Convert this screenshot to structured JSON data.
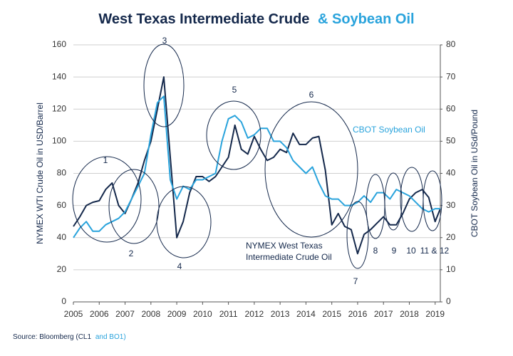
{
  "chart_data": {
    "type": "line",
    "title": [
      "West Texas Intermediate Crude",
      "& Soybean Oil"
    ],
    "title_colors": [
      "#14284b",
      "#29a3dc"
    ],
    "y_label": "NYMEX WTI Crude Oil in USD/Barrel",
    "y2_label": "CBOT Soybean Oil in USd/Pound",
    "source": [
      "Source: Bloomberg (CL1",
      "and BO1)"
    ],
    "annotations": [
      "1",
      "2",
      "3",
      "4",
      "5",
      "6",
      "7",
      "8",
      "9",
      "10",
      "11 & 12"
    ],
    "xlim": [
      2005,
      2019.2
    ],
    "xticks": [
      2005,
      2006,
      2007,
      2008,
      2009,
      2010,
      2011,
      2012,
      2013,
      2014,
      2015,
      2016,
      2017,
      2018,
      2019
    ],
    "ylim": [
      0,
      160
    ],
    "yticks": [
      0,
      20,
      40,
      60,
      80,
      100,
      120,
      140,
      160
    ],
    "y2lim": [
      0,
      80
    ],
    "y2ticks": [
      0,
      10,
      20,
      30,
      40,
      50,
      60,
      70,
      80
    ],
    "grid": true,
    "x": [
      2005.0,
      2005.25,
      2005.5,
      2005.75,
      2006.0,
      2006.25,
      2006.5,
      2006.75,
      2007.0,
      2007.25,
      2007.5,
      2007.75,
      2008.0,
      2008.25,
      2008.5,
      2008.75,
      2009.0,
      2009.25,
      2009.5,
      2009.75,
      2010.0,
      2010.25,
      2010.5,
      2010.75,
      2011.0,
      2011.25,
      2011.5,
      2011.75,
      2012.0,
      2012.25,
      2012.5,
      2012.75,
      2013.0,
      2013.25,
      2013.5,
      2013.75,
      2014.0,
      2014.25,
      2014.5,
      2014.75,
      2015.0,
      2015.25,
      2015.5,
      2015.75,
      2016.0,
      2016.25,
      2016.5,
      2016.75,
      2017.0,
      2017.25,
      2017.5,
      2017.75,
      2018.0,
      2018.25,
      2018.5,
      2018.75,
      2019.0,
      2019.2
    ],
    "series": [
      {
        "name": "NYMEX West Texas Intermediate Crude Oil",
        "color": "#14284b",
        "axis": "y",
        "values": [
          47,
          53,
          60,
          62,
          63,
          70,
          74,
          60,
          55,
          64,
          74,
          88,
          100,
          120,
          140,
          90,
          40,
          50,
          68,
          78,
          78,
          75,
          78,
          84,
          90,
          110,
          95,
          92,
          103,
          95,
          88,
          90,
          95,
          93,
          105,
          98,
          98,
          102,
          103,
          82,
          48,
          55,
          47,
          45,
          30,
          42,
          45,
          49,
          53,
          48,
          48,
          55,
          64,
          68,
          70,
          65,
          50,
          58
        ]
      },
      {
        "name": "CBOT Soybean Oil",
        "color": "#29a3dc",
        "axis": "y2",
        "values": [
          20,
          23,
          25,
          22,
          22,
          24,
          25,
          26,
          28,
          32,
          36,
          40,
          52,
          62,
          64,
          38,
          32,
          36,
          35,
          38,
          38,
          39,
          40,
          50,
          57,
          58,
          56,
          51,
          52,
          54,
          54,
          50,
          50,
          48,
          44,
          42,
          40,
          42,
          37,
          33,
          32,
          32,
          30,
          30,
          31,
          33,
          31,
          34,
          34,
          32,
          35,
          34,
          33,
          31,
          29,
          28,
          29,
          29
        ]
      }
    ]
  }
}
